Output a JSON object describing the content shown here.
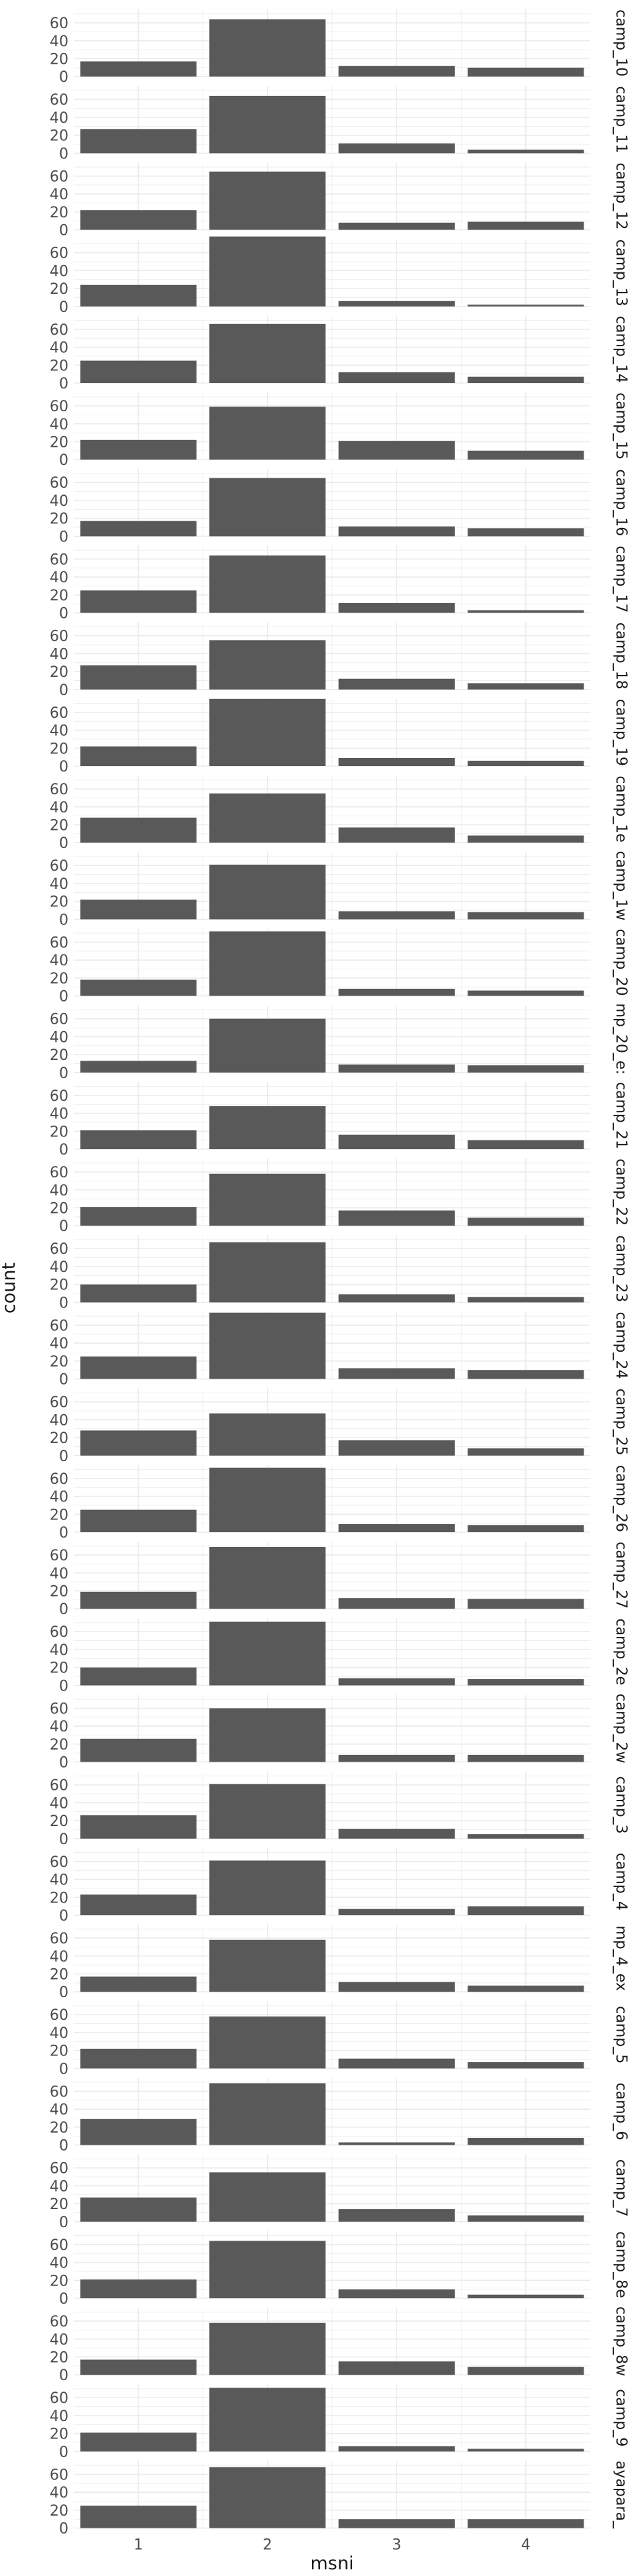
{
  "chart_data": {
    "type": "bar",
    "xlabel": "msni",
    "ylabel": "count",
    "categories": [
      "1",
      "2",
      "3",
      "4"
    ],
    "yticks": [
      "0",
      "20",
      "40",
      "60"
    ],
    "ylim": [
      0,
      75
    ],
    "facet_layout": "vertical strips, labels on right",
    "grid": true,
    "colors": {
      "bar": "#595959",
      "grid": "#ebebeb",
      "text": "#4d4d4d",
      "title": "#1a1a1a"
    },
    "facets": [
      {
        "name": "camp_10",
        "values": [
          17,
          64,
          12,
          10
        ]
      },
      {
        "name": "camp_11",
        "values": [
          27,
          64,
          11,
          4
        ]
      },
      {
        "name": "camp_12",
        "values": [
          22,
          65,
          8,
          9
        ]
      },
      {
        "name": "camp_13",
        "values": [
          24,
          78,
          6,
          2
        ]
      },
      {
        "name": "camp_14",
        "values": [
          25,
          66,
          12,
          7
        ]
      },
      {
        "name": "camp_15",
        "values": [
          22,
          59,
          21,
          10
        ]
      },
      {
        "name": "camp_16",
        "values": [
          17,
          65,
          11,
          9
        ]
      },
      {
        "name": "camp_17",
        "values": [
          25,
          64,
          11,
          3
        ]
      },
      {
        "name": "camp_18",
        "values": [
          27,
          55,
          12,
          7
        ]
      },
      {
        "name": "camp_19",
        "values": [
          22,
          75,
          9,
          6
        ]
      },
      {
        "name": "camp_1e",
        "values": [
          28,
          55,
          17,
          8
        ]
      },
      {
        "name": "camp_1w",
        "values": [
          22,
          61,
          9,
          8
        ]
      },
      {
        "name": "camp_20",
        "values": [
          18,
          72,
          8,
          6
        ]
      },
      {
        "name": "mp_20_e:",
        "values": [
          13,
          60,
          9,
          8
        ]
      },
      {
        "name": "camp_21",
        "values": [
          21,
          48,
          16,
          10
        ]
      },
      {
        "name": "camp_22",
        "values": [
          21,
          58,
          17,
          9
        ]
      },
      {
        "name": "camp_23",
        "values": [
          20,
          67,
          9,
          6
        ]
      },
      {
        "name": "camp_24",
        "values": [
          25,
          74,
          12,
          10
        ]
      },
      {
        "name": "camp_25",
        "values": [
          28,
          47,
          17,
          8
        ]
      },
      {
        "name": "camp_26",
        "values": [
          25,
          72,
          9,
          8
        ]
      },
      {
        "name": "camp_27",
        "values": [
          19,
          69,
          12,
          11
        ]
      },
      {
        "name": "camp_2e",
        "values": [
          20,
          71,
          8,
          7
        ]
      },
      {
        "name": "camp_2w",
        "values": [
          26,
          60,
          8,
          8
        ]
      },
      {
        "name": "camp_3",
        "values": [
          26,
          61,
          11,
          5
        ]
      },
      {
        "name": "camp_4",
        "values": [
          23,
          61,
          7,
          10
        ]
      },
      {
        "name": "mp_4_ex",
        "values": [
          17,
          58,
          11,
          7
        ]
      },
      {
        "name": "camp_5",
        "values": [
          22,
          58,
          11,
          7
        ]
      },
      {
        "name": "camp_6",
        "values": [
          29,
          69,
          3,
          8
        ]
      },
      {
        "name": "camp_7",
        "values": [
          27,
          55,
          14,
          7
        ]
      },
      {
        "name": "camp_8e",
        "values": [
          21,
          64,
          10,
          4
        ]
      },
      {
        "name": "camp_8w",
        "values": [
          17,
          58,
          15,
          9
        ]
      },
      {
        "name": "camp_9",
        "values": [
          21,
          71,
          6,
          3
        ]
      },
      {
        "name": "ayapara_",
        "values": [
          25,
          68,
          10,
          10
        ]
      }
    ]
  }
}
